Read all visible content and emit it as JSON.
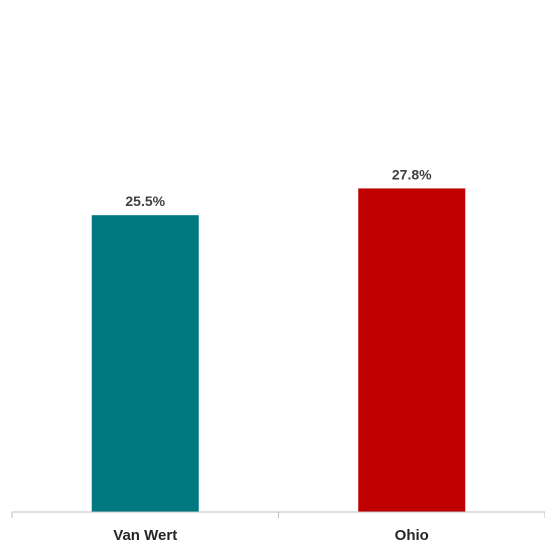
{
  "chart_data": {
    "type": "bar",
    "categories": [
      "Van Wert",
      "Ohio"
    ],
    "values": [
      25.5,
      27.8
    ],
    "data_labels": [
      "25.5%",
      "27.8%"
    ],
    "colors": [
      "#007882",
      "#c00000"
    ],
    "ylim": [
      0,
      30.5
    ],
    "title": "",
    "xlabel": "",
    "ylabel": "",
    "grid": false,
    "legend": "none"
  }
}
